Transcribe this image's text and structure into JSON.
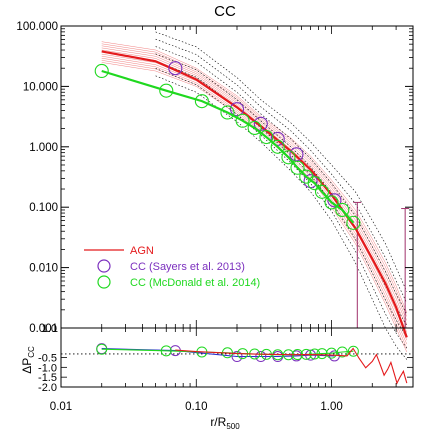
{
  "chart_data": {
    "type": "line",
    "title": "CC",
    "xlabel_main": "r/R",
    "xlabel_sub": "500",
    "x_scale": "log",
    "xlim": [
      0.01,
      4.0
    ],
    "x_ticks": [
      {
        "value": 0.01,
        "label": "0.01"
      },
      {
        "value": 0.1,
        "label": "0.10"
      },
      {
        "value": 1.0,
        "label": "1.00"
      }
    ],
    "top_panel": {
      "y_scale": "log",
      "ylim": [
        0.001,
        100.0
      ],
      "y_ticks": [
        {
          "value": 100.0,
          "label": "100.000"
        },
        {
          "value": 10.0,
          "label": "10.000"
        },
        {
          "value": 1.0,
          "label": "1.000"
        },
        {
          "value": 0.1,
          "label": "0.100"
        },
        {
          "value": 0.01,
          "label": "0.010"
        },
        {
          "value": 0.001,
          "label": "0.001"
        }
      ],
      "legend_position": "bottom-left",
      "series": [
        {
          "name": "AGN",
          "kind": "line",
          "color": "#e41a1c",
          "x": [
            0.02,
            0.05,
            0.1,
            0.2,
            0.3,
            0.5,
            0.7,
            1.0,
            1.5,
            2.0,
            2.5,
            3.0,
            3.6
          ],
          "y": [
            38,
            26,
            13,
            4.5,
            2.2,
            0.85,
            0.42,
            0.16,
            0.045,
            0.014,
            0.0055,
            0.0022,
            0.0007
          ]
        },
        {
          "name": "CC (Sayers et al. 2013)",
          "kind": "markers",
          "marker": "circle",
          "color": "#7b2fbe",
          "x": [
            0.07,
            0.2,
            0.3,
            0.4,
            0.55,
            0.7,
            1.05
          ],
          "y": [
            20,
            4.2,
            2.4,
            1.35,
            0.75,
            0.27,
            0.13
          ]
        },
        {
          "name": "CC (McDonald et al. 2014)",
          "kind": "line+markers",
          "marker": "circle",
          "color": "#1fd81f",
          "x": [
            0.02,
            0.06,
            0.11,
            0.17,
            0.22,
            0.27,
            0.33,
            0.4,
            0.48,
            0.56,
            0.65,
            0.75,
            0.85,
            1.0,
            1.2,
            1.45
          ],
          "y": [
            18,
            8.5,
            5.7,
            3.7,
            2.7,
            2.05,
            1.45,
            1.0,
            0.67,
            0.45,
            0.32,
            0.25,
            0.18,
            0.12,
            0.09,
            0.055
          ]
        }
      ],
      "sim_band": {
        "color": "#e41a1c",
        "x": [
          0.02,
          0.05,
          0.1,
          0.2,
          0.3,
          0.5,
          0.7,
          1.0,
          1.5,
          2.0,
          2.5,
          3.0,
          3.6
        ],
        "lower": [
          25,
          18,
          10,
          3.5,
          1.7,
          0.6,
          0.3,
          0.1,
          0.025,
          0.007,
          0.0025,
          0.001,
          0.0004
        ],
        "upper": [
          55,
          40,
          20,
          7,
          3.2,
          1.4,
          0.7,
          0.28,
          0.09,
          0.03,
          0.012,
          0.005,
          0.0018
        ]
      },
      "dotted_envelope": {
        "color": "#000000",
        "x": [
          0.05,
          0.1,
          0.2,
          0.3,
          0.5,
          0.7,
          1.0,
          1.5,
          2.0,
          2.5,
          3.0,
          3.6
        ],
        "lower": [
          15,
          8,
          2.6,
          1.2,
          0.4,
          0.18,
          0.06,
          0.012,
          0.003,
          0.001,
          0.0005,
          0.0003
        ],
        "upper": [
          80,
          45,
          14,
          6,
          2.5,
          1.2,
          0.5,
          0.18,
          0.06,
          0.025,
          0.01,
          0.004
        ]
      },
      "error_bars": [
        {
          "x": 1.55,
          "y": 0.055,
          "low": 0.001,
          "high": 0.12,
          "color": "#a0306a"
        },
        {
          "x": 3.5,
          "y": 0.09,
          "low": 0.001,
          "high": 0.095,
          "color": "#a0306a"
        }
      ]
    },
    "bottom_panel": {
      "ylabel": "ΔP",
      "ylabel_sub": "CC",
      "y_scale": "linear",
      "ylim": [
        -2.0,
        1.0
      ],
      "y_ticks": [
        {
          "value": 1.0,
          "label": "1.0"
        },
        {
          "value": -0.5,
          "label": "-0.5"
        },
        {
          "value": -1.0,
          "label": "-1.0"
        },
        {
          "value": -1.5,
          "label": "-1.5"
        },
        {
          "value": -2.0,
          "label": "-2.0"
        }
      ],
      "reference_y": -0.32,
      "series": [
        {
          "name": "Sayers residual",
          "color": "#2b2fd0",
          "x": [
            0.02,
            0.07,
            0.2,
            0.3,
            0.4,
            0.55,
            0.7,
            1.05
          ],
          "y": [
            -0.05,
            -0.15,
            -0.45,
            -0.45,
            -0.45,
            -0.42,
            -0.38,
            -0.42
          ]
        },
        {
          "name": "McDonald residual",
          "color": "#1fd81f",
          "x": [
            0.02,
            0.06,
            0.11,
            0.17,
            0.22,
            0.27,
            0.33,
            0.4,
            0.48,
            0.56,
            0.65,
            0.75,
            0.85,
            1.0,
            1.2,
            1.45
          ],
          "y": [
            -0.08,
            -0.16,
            -0.22,
            -0.26,
            -0.3,
            -0.32,
            -0.34,
            -0.36,
            -0.36,
            -0.35,
            -0.34,
            -0.32,
            -0.3,
            -0.28,
            -0.22,
            -0.18
          ]
        },
        {
          "name": "AGN residual",
          "color": "#e41a1c",
          "x": [
            0.07,
            0.1,
            0.2,
            0.3,
            0.5,
            0.7,
            1.0,
            1.3,
            1.6,
            2.0,
            2.3,
            2.6,
            2.9,
            3.2,
            3.6
          ],
          "y": [
            -0.12,
            -0.2,
            -0.3,
            -0.33,
            -0.36,
            -0.35,
            -0.38,
            -0.42,
            -0.55,
            -0.7,
            -0.9,
            -1.1,
            -1.3,
            -1.5,
            -1.8
          ]
        }
      ]
    }
  }
}
